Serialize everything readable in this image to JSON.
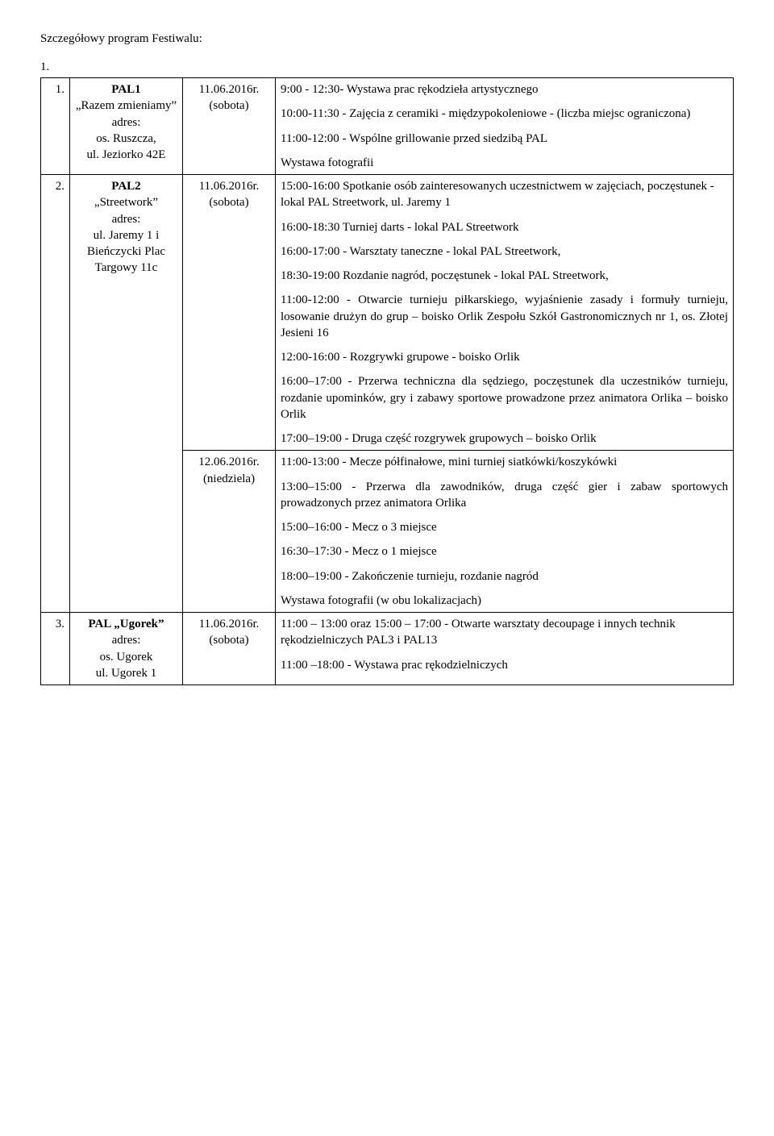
{
  "heading": "Szczegółowy program Festiwalu:",
  "section_number": "1.",
  "rows": [
    {
      "num": "1.",
      "pal_title": "PAL1",
      "pal_quote": "„Razem zmieniamy”",
      "pal_addr_label": "adres:",
      "pal_addr1": "os. Ruszcza,",
      "pal_addr2": "ul. Jeziorko 42E",
      "date_line1": "11.06.2016r.",
      "date_line2": "(sobota)",
      "desc": [
        "9:00 - 12:30- Wystawa prac rękodzieła artystycznego",
        "10:00-11:30 - Zajęcia z ceramiki - międzypokoleniowe - (liczba miejsc ograniczona)",
        "11:00-12:00 - Wspólne grillowanie przed siedzibą PAL",
        "Wystawa fotografii"
      ]
    },
    {
      "num": "2.",
      "pal_title": "PAL2",
      "pal_quote": "„Streetwork”",
      "pal_addr_label": "adres:",
      "pal_addr1": "ul. Jaremy 1 i Bieńczycki Plac Targowy 11c",
      "date_blocks": [
        {
          "line1": "11.06.2016r.",
          "line2": "(sobota)"
        },
        {
          "line1": "12.06.2016r.",
          "line2": "(niedziela)"
        }
      ],
      "desc_blocks": [
        [
          "15:00-16:00 Spotkanie osób zainteresowanych uczestnictwem w zajęciach, poczęstunek - lokal PAL Streetwork, ul. Jaremy 1",
          "16:00-18:30 Turniej darts - lokal PAL Streetwork",
          "16:00-17:00 - Warsztaty taneczne - lokal PAL Streetwork,",
          "18:30-19:00 Rozdanie nagród, poczęstunek - lokal PAL Streetwork,",
          "11:00-12:00 - Otwarcie turnieju piłkarskiego, wyjaśnienie zasady i formuły turnieju, losowanie drużyn do grup – boisko Orlik Zespołu Szkół Gastronomicznych nr 1, os. Złotej Jesieni 16",
          "12:00-16:00 - Rozgrywki grupowe - boisko Orlik",
          "16:00–17:00 - Przerwa techniczna dla sędziego, poczęstunek dla uczestników turnieju, rozdanie upominków, gry i zabawy sportowe prowadzone przez animatora Orlika – boisko Orlik",
          "17:00–19:00 - Druga część rozgrywek grupowych – boisko Orlik"
        ],
        [
          "11:00-13:00 - Mecze półfinałowe, mini turniej siatkówki/koszykówki",
          "13:00–15:00 - Przerwa dla zawodników, druga część gier i zabaw sportowych prowadzonych przez animatora Orlika",
          "15:00–16:00 - Mecz o 3 miejsce",
          "16:30–17:30 - Mecz o 1 miejsce",
          "18:00–19:00 - Zakończenie turnieju, rozdanie nagród",
          "Wystawa fotografii (w obu lokalizacjach)"
        ]
      ]
    },
    {
      "num": "3.",
      "pal_title": "PAL „Ugorek”",
      "pal_addr_label": "adres:",
      "pal_addr1": "os. Ugorek",
      "pal_addr2": "ul. Ugorek 1",
      "date_line1": "11.06.2016r.",
      "date_line2": "(sobota)",
      "desc": [
        "11:00 – 13:00 oraz 15:00 – 17:00 - Otwarte warsztaty decoupage i innych technik rękodzielniczych PAL3 i PAL13",
        "11:00 –18:00 - Wystawa prac rękodzielniczych"
      ]
    }
  ]
}
